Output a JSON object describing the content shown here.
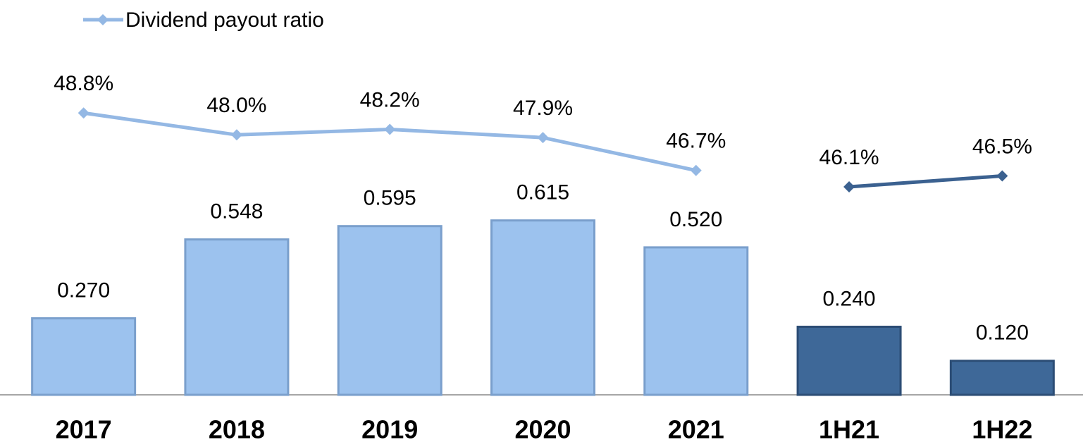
{
  "chart_data": {
    "type": "bar",
    "categories": [
      "2017",
      "2018",
      "2019",
      "2020",
      "2021",
      "1H21",
      "1H22"
    ],
    "ylim": [
      0,
      1.38
    ],
    "y2lim": [
      38.5,
      52.8
    ],
    "legend": "top-left",
    "series": [
      {
        "type": "bar",
        "values": [
          0.27,
          0.548,
          0.595,
          0.615,
          0.52,
          0.24,
          0.12
        ],
        "value_labels": [
          "0.270",
          "0.548",
          "0.595",
          "0.615",
          "0.520",
          "0.240",
          "0.120"
        ],
        "colors": [
          "#9cc2ee",
          "#9cc2ee",
          "#9cc2ee",
          "#9cc2ee",
          "#9cc2ee",
          "#3e6898",
          "#3e6898"
        ]
      },
      {
        "type": "line",
        "name": "Dividend payout ratio",
        "axis": "y2",
        "color": "#94b8e4",
        "values": [
          48.8,
          48.0,
          48.2,
          47.9,
          46.7,
          null,
          null
        ],
        "value_labels": [
          "48.8%",
          "48.0%",
          "48.2%",
          "47.9%",
          "46.7%",
          null,
          null
        ]
      },
      {
        "type": "line",
        "axis": "y2",
        "color": "#3b6190",
        "values": [
          null,
          null,
          null,
          null,
          null,
          46.1,
          46.5
        ],
        "value_labels": [
          null,
          null,
          null,
          null,
          null,
          "46.1%",
          "46.5%"
        ]
      }
    ]
  }
}
